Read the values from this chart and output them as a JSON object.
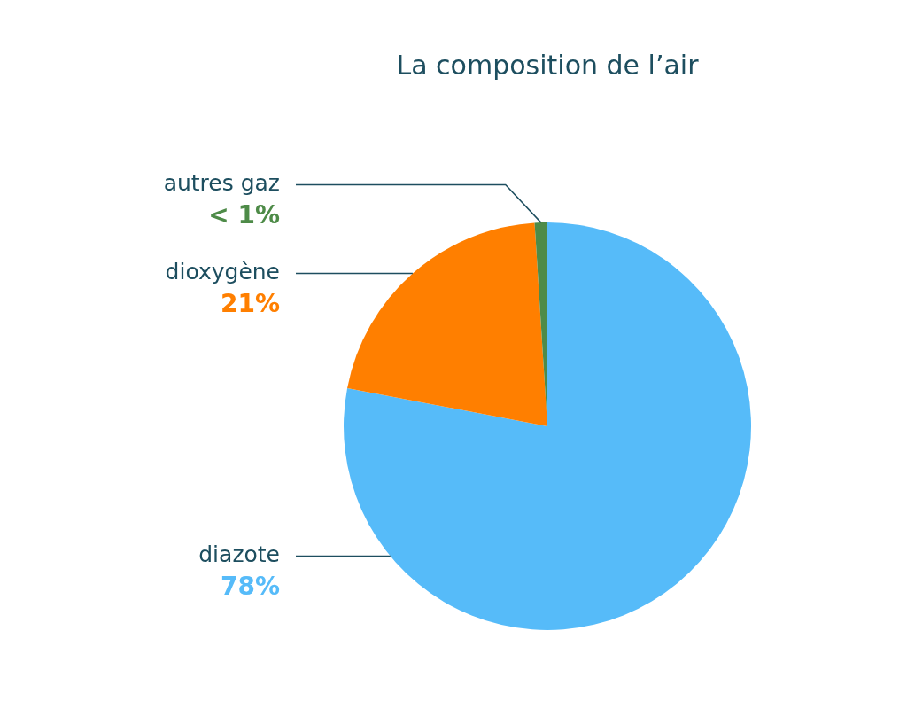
{
  "chart_data": {
    "type": "pie",
    "title": "La composition de l’air",
    "categories": [
      "diazote",
      "dioxygène",
      "autres gaz"
    ],
    "values": [
      78,
      21,
      1
    ],
    "colors": [
      "#56bbf9",
      "#ff7f00",
      "#4e8b48"
    ],
    "value_labels": [
      "78%",
      "21%",
      "< 1%"
    ]
  }
}
